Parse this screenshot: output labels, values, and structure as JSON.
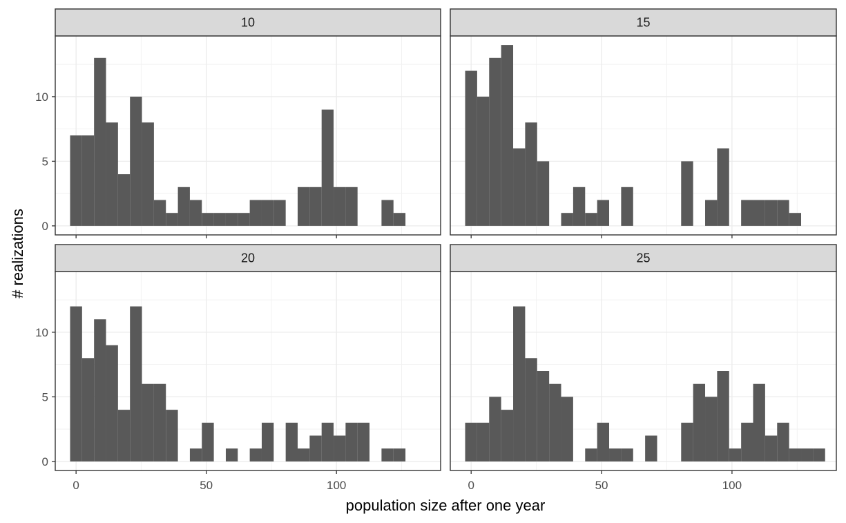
{
  "chart_data": {
    "type": "bar",
    "subtype": "faceted-histogram",
    "xlabel": "population size after one year",
    "ylabel": "# realizations",
    "xlim": [
      -8,
      140
    ],
    "ylim": [
      -0.7,
      14.7
    ],
    "x_ticks": [
      0,
      50,
      100
    ],
    "x_tick_labels": [
      "0",
      "50",
      "100"
    ],
    "y_ticks": [
      0,
      5,
      10
    ],
    "y_tick_labels": [
      "0",
      "5",
      "10"
    ],
    "grid": true,
    "bin_width": 4.6,
    "bar_color": "#595959",
    "strip_color": "#d9d9d9",
    "panels": [
      {
        "label": "10",
        "bins": [
          {
            "x": 0,
            "count": 7
          },
          {
            "x": 4.6,
            "count": 7
          },
          {
            "x": 9.2,
            "count": 13
          },
          {
            "x": 13.8,
            "count": 8
          },
          {
            "x": 18.4,
            "count": 4
          },
          {
            "x": 23,
            "count": 10
          },
          {
            "x": 27.6,
            "count": 8
          },
          {
            "x": 32.2,
            "count": 2
          },
          {
            "x": 36.8,
            "count": 1
          },
          {
            "x": 41.4,
            "count": 3
          },
          {
            "x": 46,
            "count": 2
          },
          {
            "x": 50.6,
            "count": 1
          },
          {
            "x": 55.2,
            "count": 1
          },
          {
            "x": 59.8,
            "count": 1
          },
          {
            "x": 64.4,
            "count": 1
          },
          {
            "x": 69,
            "count": 2
          },
          {
            "x": 73.6,
            "count": 2
          },
          {
            "x": 78.2,
            "count": 2
          },
          {
            "x": 87.4,
            "count": 3
          },
          {
            "x": 92,
            "count": 3
          },
          {
            "x": 96.6,
            "count": 9
          },
          {
            "x": 101.2,
            "count": 3
          },
          {
            "x": 105.8,
            "count": 3
          },
          {
            "x": 119.6,
            "count": 2
          },
          {
            "x": 124.2,
            "count": 1
          }
        ]
      },
      {
        "label": "15",
        "bins": [
          {
            "x": 0,
            "count": 12
          },
          {
            "x": 4.6,
            "count": 10
          },
          {
            "x": 9.2,
            "count": 13
          },
          {
            "x": 13.8,
            "count": 14
          },
          {
            "x": 18.4,
            "count": 6
          },
          {
            "x": 23,
            "count": 8
          },
          {
            "x": 27.6,
            "count": 5
          },
          {
            "x": 36.8,
            "count": 1
          },
          {
            "x": 41.4,
            "count": 3
          },
          {
            "x": 46,
            "count": 1
          },
          {
            "x": 50.6,
            "count": 2
          },
          {
            "x": 59.8,
            "count": 3
          },
          {
            "x": 82.8,
            "count": 5
          },
          {
            "x": 92,
            "count": 2
          },
          {
            "x": 96.6,
            "count": 6
          },
          {
            "x": 105.8,
            "count": 2
          },
          {
            "x": 110.4,
            "count": 2
          },
          {
            "x": 115,
            "count": 2
          },
          {
            "x": 119.6,
            "count": 2
          },
          {
            "x": 124.2,
            "count": 1
          }
        ]
      },
      {
        "label": "20",
        "bins": [
          {
            "x": 0,
            "count": 12
          },
          {
            "x": 4.6,
            "count": 8
          },
          {
            "x": 9.2,
            "count": 11
          },
          {
            "x": 13.8,
            "count": 9
          },
          {
            "x": 18.4,
            "count": 4
          },
          {
            "x": 23,
            "count": 12
          },
          {
            "x": 27.6,
            "count": 6
          },
          {
            "x": 32.2,
            "count": 6
          },
          {
            "x": 36.8,
            "count": 4
          },
          {
            "x": 46,
            "count": 1
          },
          {
            "x": 50.6,
            "count": 3
          },
          {
            "x": 59.8,
            "count": 1
          },
          {
            "x": 69,
            "count": 1
          },
          {
            "x": 73.6,
            "count": 3
          },
          {
            "x": 82.8,
            "count": 3
          },
          {
            "x": 87.4,
            "count": 1
          },
          {
            "x": 92,
            "count": 2
          },
          {
            "x": 96.6,
            "count": 3
          },
          {
            "x": 101.2,
            "count": 2
          },
          {
            "x": 105.8,
            "count": 3
          },
          {
            "x": 110.4,
            "count": 3
          },
          {
            "x": 119.6,
            "count": 1
          },
          {
            "x": 124.2,
            "count": 1
          }
        ]
      },
      {
        "label": "25",
        "bins": [
          {
            "x": 0,
            "count": 3
          },
          {
            "x": 4.6,
            "count": 3
          },
          {
            "x": 9.2,
            "count": 5
          },
          {
            "x": 13.8,
            "count": 4
          },
          {
            "x": 18.4,
            "count": 12
          },
          {
            "x": 23,
            "count": 8
          },
          {
            "x": 27.6,
            "count": 7
          },
          {
            "x": 32.2,
            "count": 6
          },
          {
            "x": 36.8,
            "count": 5
          },
          {
            "x": 46,
            "count": 1
          },
          {
            "x": 50.6,
            "count": 3
          },
          {
            "x": 55.2,
            "count": 1
          },
          {
            "x": 59.8,
            "count": 1
          },
          {
            "x": 69,
            "count": 2
          },
          {
            "x": 82.8,
            "count": 3
          },
          {
            "x": 87.4,
            "count": 6
          },
          {
            "x": 92,
            "count": 5
          },
          {
            "x": 96.6,
            "count": 7
          },
          {
            "x": 101.2,
            "count": 1
          },
          {
            "x": 105.8,
            "count": 3
          },
          {
            "x": 110.4,
            "count": 6
          },
          {
            "x": 115,
            "count": 2
          },
          {
            "x": 119.6,
            "count": 3
          },
          {
            "x": 124.2,
            "count": 1
          },
          {
            "x": 128.8,
            "count": 1
          },
          {
            "x": 133.4,
            "count": 1
          }
        ]
      }
    ]
  }
}
